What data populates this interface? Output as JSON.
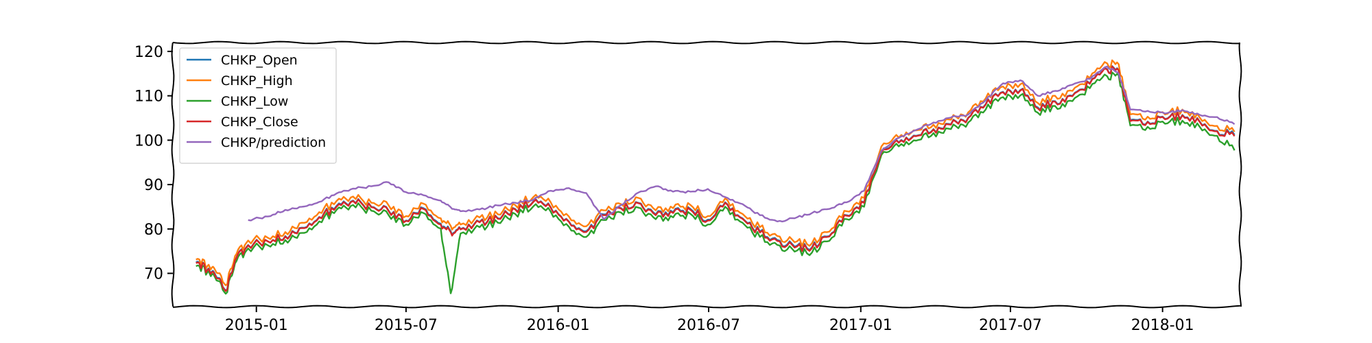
{
  "chart_data": {
    "type": "line",
    "title": "",
    "xlabel": "",
    "ylabel": "",
    "x_range": [
      "2014-09-22",
      "2018-04-05"
    ],
    "ylim": [
      62.5,
      122
    ],
    "grid": false,
    "legend_placement": "top-left",
    "x_ticks": [
      {
        "date": "2015-01-01",
        "label": "2015-01"
      },
      {
        "date": "2015-07-01",
        "label": "2015-07"
      },
      {
        "date": "2016-01-01",
        "label": "2016-01"
      },
      {
        "date": "2016-07-01",
        "label": "2016-07"
      },
      {
        "date": "2017-01-01",
        "label": "2017-01"
      },
      {
        "date": "2017-07-01",
        "label": "2017-07"
      },
      {
        "date": "2018-01-01",
        "label": "2018-01"
      }
    ],
    "y_ticks": [
      70,
      80,
      90,
      100,
      110,
      120
    ],
    "x": [
      "2014-10-20",
      "2014-11-03",
      "2014-11-12",
      "2014-11-25",
      "2014-12-08",
      "2014-12-22",
      "2015-01-15",
      "2015-02-05",
      "2015-02-25",
      "2015-03-18",
      "2015-04-08",
      "2015-04-28",
      "2015-05-20",
      "2015-06-10",
      "2015-07-01",
      "2015-07-22",
      "2015-08-12",
      "2015-08-24",
      "2015-09-05",
      "2015-09-28",
      "2015-10-20",
      "2015-11-10",
      "2015-12-02",
      "2015-12-23",
      "2016-01-14",
      "2016-02-04",
      "2016-02-25",
      "2016-03-17",
      "2016-04-07",
      "2016-04-28",
      "2016-05-19",
      "2016-06-09",
      "2016-06-30",
      "2016-07-21",
      "2016-08-11",
      "2016-09-01",
      "2016-09-22",
      "2016-10-13",
      "2016-11-03",
      "2016-11-24",
      "2016-12-15",
      "2017-01-05",
      "2017-01-26",
      "2017-02-16",
      "2017-03-09",
      "2017-03-30",
      "2017-04-20",
      "2017-05-11",
      "2017-06-01",
      "2017-06-22",
      "2017-07-13",
      "2017-08-03",
      "2017-08-24",
      "2017-09-14",
      "2017-10-05",
      "2017-10-26",
      "2017-11-09",
      "2017-11-23",
      "2017-12-14",
      "2018-01-04",
      "2018-01-25",
      "2018-02-15",
      "2018-03-08",
      "2018-03-29"
    ],
    "series": [
      {
        "name": "CHKP_Open",
        "color": "#1f77b4",
        "values": [
          72.5,
          70.9,
          69.8,
          66.1,
          73.6,
          76.4,
          77.2,
          78.4,
          80.3,
          82.7,
          85.2,
          86.4,
          85.0,
          84.1,
          81.9,
          84.7,
          81.2,
          79.5,
          80.0,
          81.6,
          82.4,
          84.5,
          86.2,
          84.9,
          81.7,
          79.5,
          83.3,
          84.7,
          85.9,
          83.3,
          83.8,
          84.5,
          82.1,
          86.0,
          82.4,
          79.4,
          77.5,
          76.0,
          75.9,
          78.4,
          83.1,
          86.0,
          97.5,
          99.5,
          101.0,
          102.5,
          103.6,
          105.1,
          108.1,
          110.9,
          111.3,
          107.4,
          108.8,
          110.0,
          112.8,
          116.0,
          115.8,
          104.5,
          104.2,
          104.8,
          105.7,
          104.2,
          102.1,
          101.2
        ]
      },
      {
        "name": "CHKP_High",
        "color": "#ff7f0e",
        "values": [
          73.1,
          71.7,
          70.8,
          67.3,
          74.4,
          77.4,
          78.0,
          79.3,
          81.4,
          83.8,
          86.3,
          87.3,
          85.9,
          85.3,
          82.9,
          85.7,
          82.4,
          80.7,
          81.0,
          82.6,
          83.3,
          85.4,
          87.2,
          86.0,
          82.8,
          80.6,
          84.2,
          85.6,
          87.0,
          84.2,
          84.7,
          85.4,
          82.9,
          86.9,
          83.4,
          80.4,
          78.4,
          77.0,
          76.8,
          79.4,
          84.0,
          87.0,
          98.6,
          100.6,
          102.2,
          103.5,
          104.6,
          106.3,
          109.4,
          112.1,
          112.6,
          108.4,
          110.0,
          111.1,
          114.0,
          117.3,
          117.1,
          105.8,
          105.3,
          105.8,
          106.9,
          105.1,
          103.2,
          101.9
        ]
      },
      {
        "name": "CHKP_Low",
        "color": "#2ca02c",
        "values": [
          71.6,
          70.3,
          69.1,
          65.4,
          72.8,
          75.6,
          76.3,
          77.5,
          79.1,
          81.7,
          84.3,
          85.4,
          84.1,
          83.1,
          81.0,
          83.6,
          80.1,
          65.5,
          79.0,
          80.4,
          81.4,
          83.4,
          85.1,
          83.9,
          80.5,
          78.2,
          82.0,
          83.7,
          84.8,
          82.2,
          82.6,
          83.4,
          81.0,
          85.0,
          81.4,
          78.2,
          76.4,
          74.9,
          74.7,
          77.3,
          82.2,
          85.0,
          96.7,
          98.6,
          99.9,
          101.6,
          102.5,
          104.0,
          106.9,
          109.7,
          110.1,
          106.2,
          107.7,
          108.8,
          111.7,
          114.4,
          114.6,
          103.3,
          103.0,
          103.7,
          104.4,
          103.0,
          101.0,
          97.7
        ]
      },
      {
        "name": "CHKP_Close",
        "color": "#d62728",
        "values": [
          72.3,
          70.8,
          69.6,
          66.0,
          73.5,
          76.3,
          77.2,
          78.3,
          80.2,
          82.6,
          85.0,
          86.3,
          84.9,
          84.0,
          81.8,
          84.5,
          81.0,
          79.3,
          79.9,
          81.5,
          82.3,
          84.4,
          86.1,
          84.8,
          81.6,
          79.3,
          83.1,
          84.6,
          85.8,
          83.1,
          83.6,
          84.3,
          81.9,
          85.9,
          82.3,
          79.2,
          77.3,
          75.8,
          75.7,
          78.3,
          83.0,
          85.9,
          97.3,
          99.4,
          100.9,
          102.4,
          103.5,
          105.0,
          108.0,
          110.8,
          111.2,
          107.2,
          108.7,
          109.9,
          112.7,
          115.9,
          115.7,
          104.3,
          104.1,
          104.7,
          105.6,
          104.1,
          102.0,
          100.9
        ]
      },
      {
        "name": "CHKP/prediction",
        "color": "#9467bd",
        "values": [
          null,
          null,
          null,
          null,
          null,
          82.0,
          82.8,
          84.3,
          85.0,
          86.1,
          88.0,
          89.1,
          89.6,
          90.5,
          88.3,
          87.6,
          86.4,
          84.9,
          84.0,
          84.4,
          85.3,
          85.9,
          86.6,
          88.6,
          89.2,
          88.1,
          82.2,
          85.4,
          88.2,
          89.6,
          88.4,
          88.4,
          89.0,
          87.2,
          85.6,
          83.1,
          81.7,
          82.4,
          83.6,
          84.5,
          86.0,
          88.6,
          97.6,
          100.5,
          102.3,
          104.0,
          105.1,
          105.8,
          109.0,
          112.8,
          113.5,
          110.0,
          111.1,
          112.5,
          113.8,
          116.6,
          115.0,
          106.9,
          106.6,
          106.0,
          106.8,
          105.7,
          105.2,
          103.6
        ]
      }
    ]
  }
}
